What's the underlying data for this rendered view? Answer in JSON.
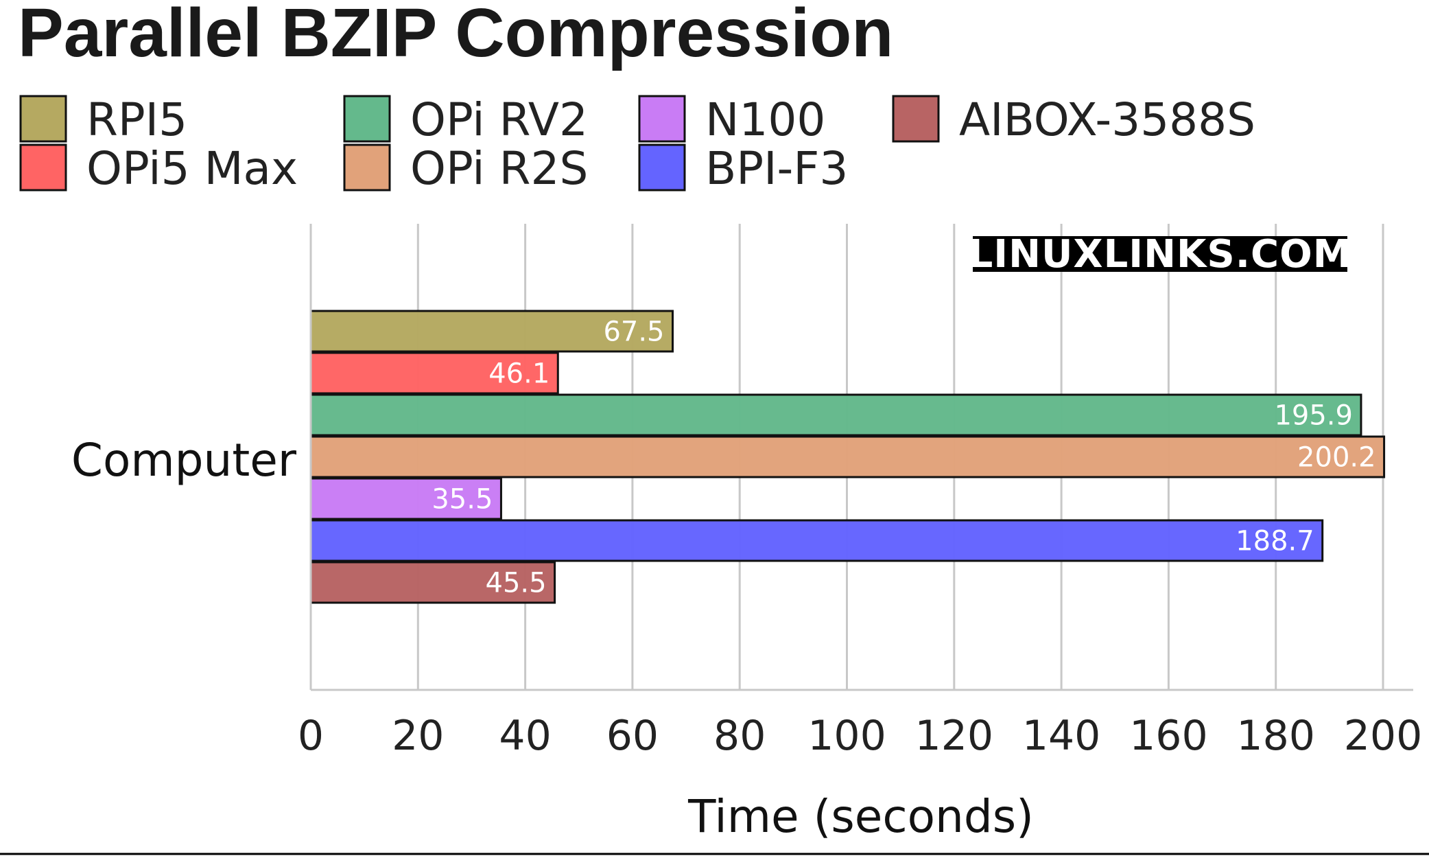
{
  "chart_data": {
    "type": "bar",
    "orientation": "horizontal",
    "title": "Parallel BZIP Compression",
    "xlabel": "Time (seconds)",
    "ylabel": "",
    "categories": [
      "Computer"
    ],
    "xlim": [
      0,
      205
    ],
    "xticks": [
      0,
      20,
      40,
      60,
      80,
      100,
      120,
      140,
      160,
      180,
      200
    ],
    "xtick_labels": [
      "0",
      "20",
      "40",
      "60",
      "80",
      "100",
      "120",
      "140",
      "160",
      "180",
      "200"
    ],
    "grid": true,
    "legend_position": "top",
    "series": [
      {
        "name": "RPI5",
        "values": [
          67.5
        ],
        "label": "67.5",
        "color": "#b5a961"
      },
      {
        "name": "OPi5 Max",
        "values": [
          46.1
        ],
        "label": "46.1",
        "color": "#ff6464"
      },
      {
        "name": "OPi RV2",
        "values": [
          195.9
        ],
        "label": "195.9",
        "color": "#64b98c"
      },
      {
        "name": "OPi R2S",
        "values": [
          200.2
        ],
        "label": "200.2",
        "color": "#e1a27a"
      },
      {
        "name": "N100",
        "values": [
          35.5
        ],
        "label": "35.5",
        "color": "#c97cf5"
      },
      {
        "name": "BPI-F3",
        "values": [
          188.7
        ],
        "label": "188.7",
        "color": "#6464ff"
      },
      {
        "name": "AIBOX-3588S",
        "values": [
          45.5
        ],
        "label": "45.5",
        "color": "#b86464"
      }
    ]
  },
  "watermark": "LINUXLINKS.COM"
}
